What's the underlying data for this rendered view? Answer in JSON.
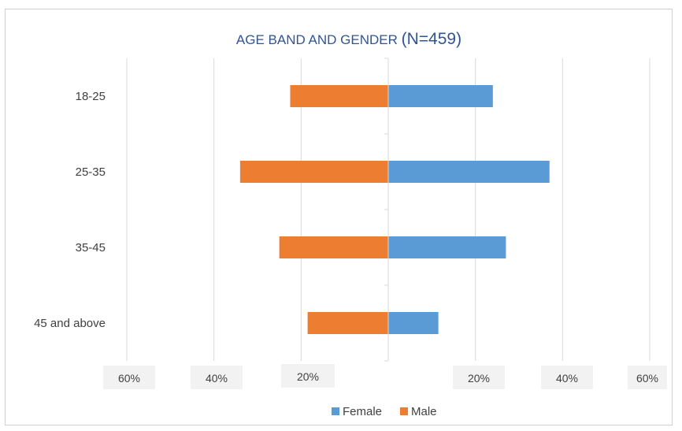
{
  "chart_data": {
    "type": "bar",
    "orientation": "horizontal",
    "layout": "population-pyramid",
    "title_main": "AGE BAND AND GENDER ",
    "title_suffix": "(N=459)",
    "categories": [
      "18-25",
      "25-35",
      "35-45",
      "45 and above"
    ],
    "series": [
      {
        "name": "Female",
        "color": "#5b9bd5",
        "side": "right",
        "values": [
          24,
          37,
          27,
          11.5
        ]
      },
      {
        "name": "Male",
        "color": "#ed7d31",
        "side": "left",
        "values": [
          22.5,
          34,
          25,
          18.5
        ]
      }
    ],
    "x_tick_labels": [
      "60%",
      "40%",
      "20%",
      "20%",
      "40%",
      "60%"
    ],
    "x_tick_values": [
      -60,
      -40,
      -20,
      20,
      40,
      60
    ],
    "xlim": [
      -60,
      60
    ],
    "gridlines": true,
    "legend_position": "bottom",
    "legend": [
      "Female",
      "Male"
    ]
  }
}
